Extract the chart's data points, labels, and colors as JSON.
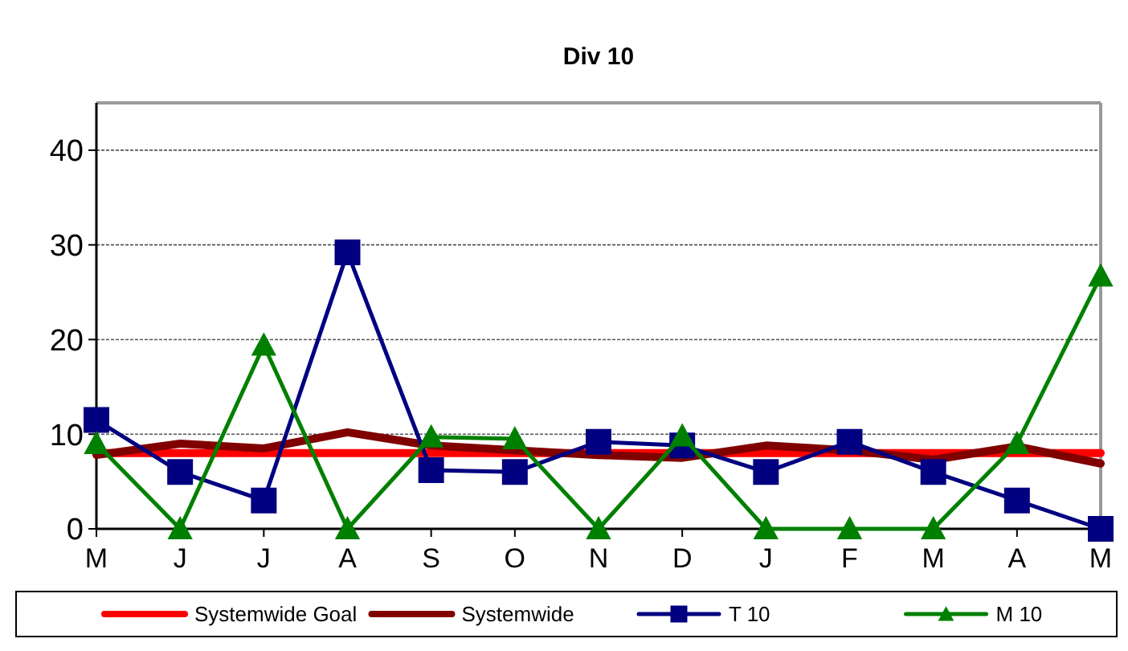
{
  "chart_data": {
    "type": "line",
    "title": "Div 10",
    "categories": [
      "M",
      "J",
      "J",
      "A",
      "S",
      "O",
      "N",
      "D",
      "J",
      "F",
      "M",
      "A",
      "M"
    ],
    "series": [
      {
        "name": "Systemwide Goal",
        "color": "#ff0000",
        "marker": "none",
        "values": [
          8,
          8,
          8,
          8,
          8,
          8,
          8,
          8,
          8,
          8,
          8,
          8,
          8
        ]
      },
      {
        "name": "Systemwide",
        "color": "#800000",
        "marker": "none",
        "values": [
          7.8,
          9,
          8.5,
          10.2,
          8.8,
          8.3,
          7.8,
          7.5,
          8.8,
          8.3,
          7.3,
          8.7,
          6.9
        ]
      },
      {
        "name": "T 10",
        "color": "#000080",
        "marker": "square",
        "values": [
          11.5,
          6,
          3,
          29.2,
          6.2,
          6,
          9.2,
          8.8,
          6,
          9.2,
          6,
          3,
          0
        ]
      },
      {
        "name": "M 10",
        "color": "#008000",
        "marker": "triangle",
        "values": [
          9,
          0,
          19.4,
          0,
          9.7,
          9.5,
          0,
          9.8,
          0,
          0,
          0,
          9,
          26.7
        ]
      }
    ],
    "ylim": [
      0,
      45
    ],
    "yticks": [
      0,
      10,
      20,
      30,
      40
    ],
    "grid": "y",
    "legend": "bottom"
  }
}
